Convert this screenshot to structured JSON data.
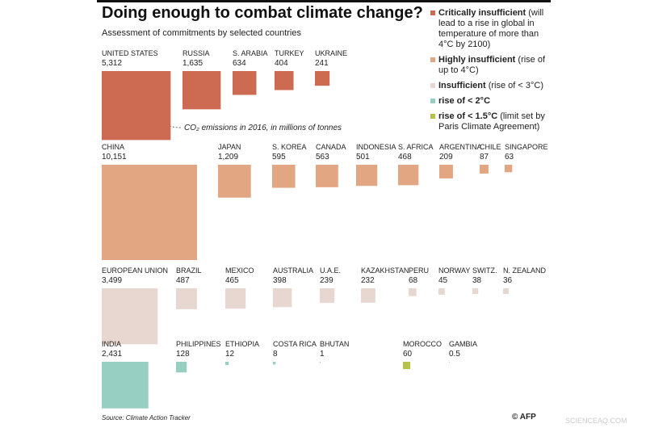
{
  "chart_data": {
    "type": "proportional-square",
    "title": "Doing enough to combat climate change?",
    "subtitle": "Assessment of commitments by selected countries",
    "annotation": "CO₂ emissions in 2016, in millions of tonnes",
    "source": "Source: Climate Action Tracker",
    "credit": "© AFP",
    "watermark": "SCIENCEAQ.COM",
    "series": [
      {
        "name": "Critically insufficient",
        "note": "(will lead to a rise in global in temperature of more than 4°C by 2100)",
        "color": "#cd6b52",
        "categories": [
          "UNITED STATES",
          "RUSSIA",
          "S. ARABIA",
          "TURKEY",
          "UKRAINE"
        ],
        "values": [
          5312,
          1635,
          634,
          404,
          241
        ],
        "value_labels": [
          "5,312",
          "1,635",
          "634",
          "404",
          "241"
        ]
      },
      {
        "name": "Highly insufficient",
        "note": "(rise of up to 4°C)",
        "color": "#e3a682",
        "categories": [
          "CHINA",
          "JAPAN",
          "S. KOREA",
          "CANADA",
          "INDONESIA",
          "S. AFRICA",
          "ARGENTINA",
          "CHILE",
          "SINGAPORE"
        ],
        "values": [
          10151,
          1209,
          595,
          563,
          501,
          468,
          209,
          87,
          63
        ],
        "value_labels": [
          "10,151",
          "1,209",
          "595",
          "563",
          "501",
          "468",
          "209",
          "87",
          "63"
        ]
      },
      {
        "name": "Insufficient",
        "note": "(rise of < 3°C)",
        "color": "#e8d6d0",
        "categories": [
          "EUROPEAN UNION",
          "BRAZIL",
          "MEXICO",
          "AUSTRALIA",
          "U.A.E.",
          "KAZAKHSTAN",
          "PERU",
          "NORWAY",
          "SWITZ.",
          "N. ZEALAND"
        ],
        "values": [
          3499,
          487,
          465,
          398,
          239,
          232,
          68,
          45,
          38,
          36
        ],
        "value_labels": [
          "3,499",
          "487",
          "465",
          "398",
          "239",
          "232",
          "68",
          "45",
          "38",
          "36"
        ]
      },
      {
        "name": "rise of < 2°C",
        "color": "#98cfc3",
        "categories": [
          "INDIA",
          "PHILIPPINES",
          "ETHIOPIA",
          "COSTA RICA",
          "BHUTAN"
        ],
        "values": [
          2431,
          128,
          12,
          8,
          1
        ],
        "value_labels": [
          "2,431",
          "128",
          "12",
          "8",
          "1"
        ]
      },
      {
        "name": "rise of < 1.5°C",
        "note": "(limit set by Paris Climate Agreement)",
        "color": "#b4c24b",
        "categories": [
          "MOROCCO",
          "GAMBIA"
        ],
        "values": [
          60,
          0.5
        ],
        "value_labels": [
          "60",
          "0.5"
        ]
      }
    ]
  }
}
